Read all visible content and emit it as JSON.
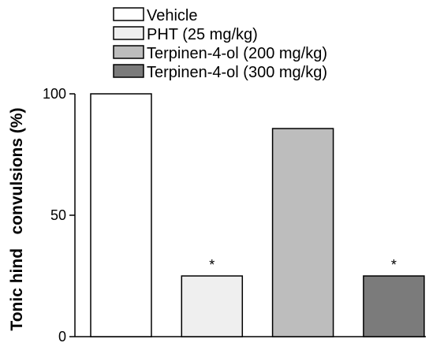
{
  "chart_data": {
    "type": "bar",
    "title": "",
    "xlabel": "",
    "ylabel": "Tonic hind   convulsions (%)",
    "ylim": [
      0,
      100
    ],
    "yticks": [
      0,
      50,
      100
    ],
    "grid": false,
    "legend_position": "top",
    "categories": [
      "Vehicle",
      "PHT (25 mg/kg)",
      "Terpinen-4-ol (200 mg/kg)",
      "Terpinen-4-ol (300 mg/kg)"
    ],
    "values": [
      100,
      25,
      85.7,
      25
    ],
    "colors": [
      "#ffffff",
      "#efefef",
      "#bdbdbd",
      "#7b7b7b"
    ],
    "significance": [
      "",
      "*",
      "",
      "*"
    ]
  }
}
